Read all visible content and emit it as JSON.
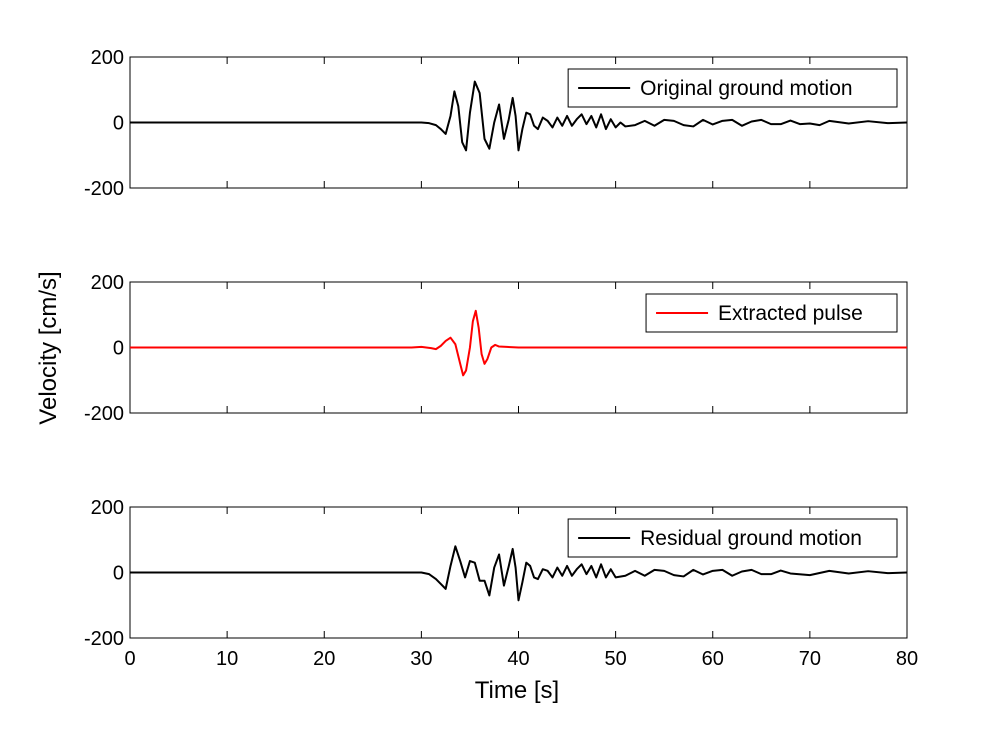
{
  "figure": {
    "ylabel": "Velocity [cm/s]",
    "xlabel": "Time [s]"
  },
  "chart_data": [
    {
      "type": "line",
      "xlim": [
        0,
        80
      ],
      "ylim": [
        -200,
        200
      ],
      "xticks": [
        0,
        10,
        20,
        30,
        40,
        50,
        60,
        70,
        80
      ],
      "yticks": [
        -200,
        0,
        200
      ],
      "show_xtick_labels": false,
      "legend": {
        "position": "top-right"
      },
      "series": [
        {
          "name": "Original ground motion",
          "color": "#000000",
          "x": [
            0,
            30,
            30.8,
            31.5,
            32,
            32.5,
            33,
            33.4,
            33.8,
            34.2,
            34.6,
            35,
            35.5,
            36,
            36.5,
            37,
            37.5,
            38,
            38.5,
            39,
            39.4,
            39.7,
            40,
            40.4,
            40.8,
            41.2,
            41.6,
            42,
            42.5,
            43,
            43.5,
            44,
            44.5,
            45,
            45.5,
            46,
            46.5,
            47,
            47.5,
            48,
            48.5,
            49,
            49.5,
            50,
            50.5,
            51,
            52,
            53,
            54,
            55,
            56,
            57,
            58,
            59,
            60,
            61,
            62,
            63,
            64,
            65,
            66,
            67,
            68,
            69,
            70,
            71,
            72,
            74,
            76,
            78,
            80
          ],
          "y": [
            0,
            0,
            -2,
            -8,
            -20,
            -35,
            20,
            95,
            50,
            -60,
            -85,
            30,
            125,
            90,
            -50,
            -80,
            0,
            55,
            -50,
            10,
            75,
            20,
            -85,
            -20,
            30,
            25,
            -10,
            -20,
            15,
            5,
            -15,
            15,
            -10,
            20,
            -10,
            10,
            25,
            -5,
            20,
            -15,
            25,
            -20,
            10,
            -15,
            0,
            -12,
            -8,
            5,
            -10,
            8,
            5,
            -8,
            -12,
            8,
            -6,
            5,
            8,
            -10,
            3,
            8,
            -5,
            -5,
            6,
            -5,
            -3,
            -8,
            5,
            -3,
            4,
            -2,
            0
          ]
        }
      ]
    },
    {
      "type": "line",
      "xlim": [
        0,
        80
      ],
      "ylim": [
        -200,
        200
      ],
      "xticks": [
        0,
        10,
        20,
        30,
        40,
        50,
        60,
        70,
        80
      ],
      "yticks": [
        -200,
        0,
        200
      ],
      "show_xtick_labels": false,
      "legend": {
        "position": "top-right"
      },
      "series": [
        {
          "name": "Extracted pulse",
          "color": "#ff0000",
          "x": [
            0,
            29,
            30,
            31,
            31.5,
            32,
            32.5,
            33,
            33.5,
            34,
            34.3,
            34.6,
            35,
            35.3,
            35.6,
            35.9,
            36.2,
            36.5,
            36.8,
            37.2,
            37.6,
            38,
            40,
            80
          ],
          "y": [
            0,
            0,
            2,
            -2,
            -5,
            5,
            20,
            30,
            10,
            -50,
            -85,
            -70,
            0,
            80,
            112,
            60,
            -20,
            -50,
            -35,
            0,
            8,
            3,
            0,
            0
          ]
        }
      ]
    },
    {
      "type": "line",
      "xlim": [
        0,
        80
      ],
      "ylim": [
        -200,
        200
      ],
      "xticks": [
        0,
        10,
        20,
        30,
        40,
        50,
        60,
        70,
        80
      ],
      "yticks": [
        -200,
        0,
        200
      ],
      "show_xtick_labels": true,
      "legend": {
        "position": "top-right"
      },
      "series": [
        {
          "name": "Residual ground motion",
          "color": "#000000",
          "x": [
            0,
            30,
            30.8,
            31.5,
            32,
            32.5,
            33,
            33.5,
            34,
            34.5,
            35,
            35.5,
            36,
            36.5,
            37,
            37.5,
            38,
            38.5,
            39,
            39.4,
            39.7,
            40,
            40.4,
            40.8,
            41.2,
            41.6,
            42,
            42.5,
            43,
            43.5,
            44,
            44.5,
            45,
            45.5,
            46,
            46.5,
            47,
            47.5,
            48,
            48.5,
            49,
            49.5,
            50,
            51,
            52,
            53,
            54,
            55,
            56,
            57,
            58,
            59,
            60,
            61,
            62,
            63,
            64,
            65,
            66,
            67,
            68,
            70,
            72,
            74,
            76,
            78,
            80
          ],
          "y": [
            0,
            0,
            -5,
            -20,
            -35,
            -50,
            20,
            80,
            35,
            -15,
            35,
            30,
            -25,
            -25,
            -70,
            15,
            55,
            -40,
            20,
            72,
            15,
            -85,
            -30,
            30,
            20,
            -15,
            -20,
            10,
            5,
            -15,
            15,
            -10,
            20,
            -10,
            10,
            25,
            -5,
            20,
            -15,
            25,
            -15,
            10,
            -15,
            -10,
            5,
            -10,
            8,
            5,
            -8,
            -12,
            8,
            -6,
            5,
            8,
            -10,
            3,
            8,
            -5,
            -5,
            6,
            -3,
            -8,
            5,
            -3,
            4,
            -2,
            0
          ]
        }
      ]
    }
  ]
}
